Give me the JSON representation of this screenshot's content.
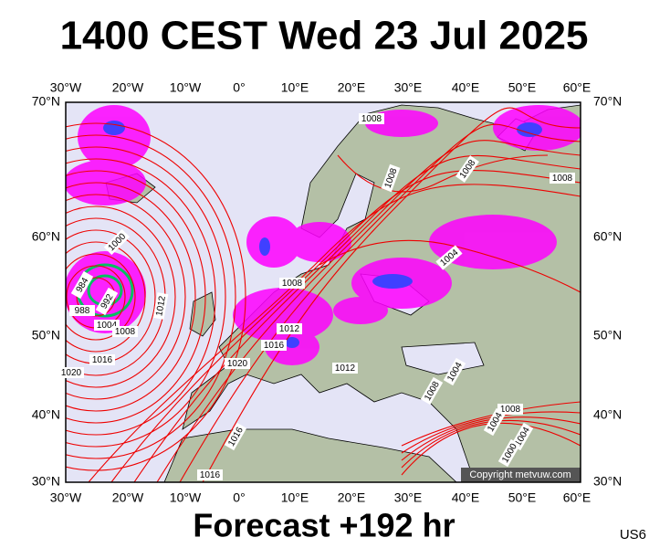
{
  "header": {
    "title": "1400 CEST Wed 23 Jul 2025"
  },
  "footer": {
    "subtitle": "Forecast +192 hr",
    "code": "US6"
  },
  "map": {
    "lon_labels": [
      "30°W",
      "20°W",
      "10°W",
      "0°",
      "10°E",
      "20°E",
      "30°E",
      "40°E",
      "50°E",
      "60°E"
    ],
    "lat_labels": [
      "70°N",
      "60°N",
      "50°N",
      "40°N",
      "30°N"
    ],
    "isobar_labels": [
      1008,
      1008,
      1008,
      1008,
      1000,
      1004,
      984,
      992,
      988,
      1004,
      1008,
      1012,
      1008,
      1012,
      1016,
      1016,
      1020,
      1012,
      1020,
      1004,
      1008,
      1008,
      1004,
      1004,
      1000,
      1016,
      1016
    ],
    "copyright": "Copyright metvuw.com"
  }
}
